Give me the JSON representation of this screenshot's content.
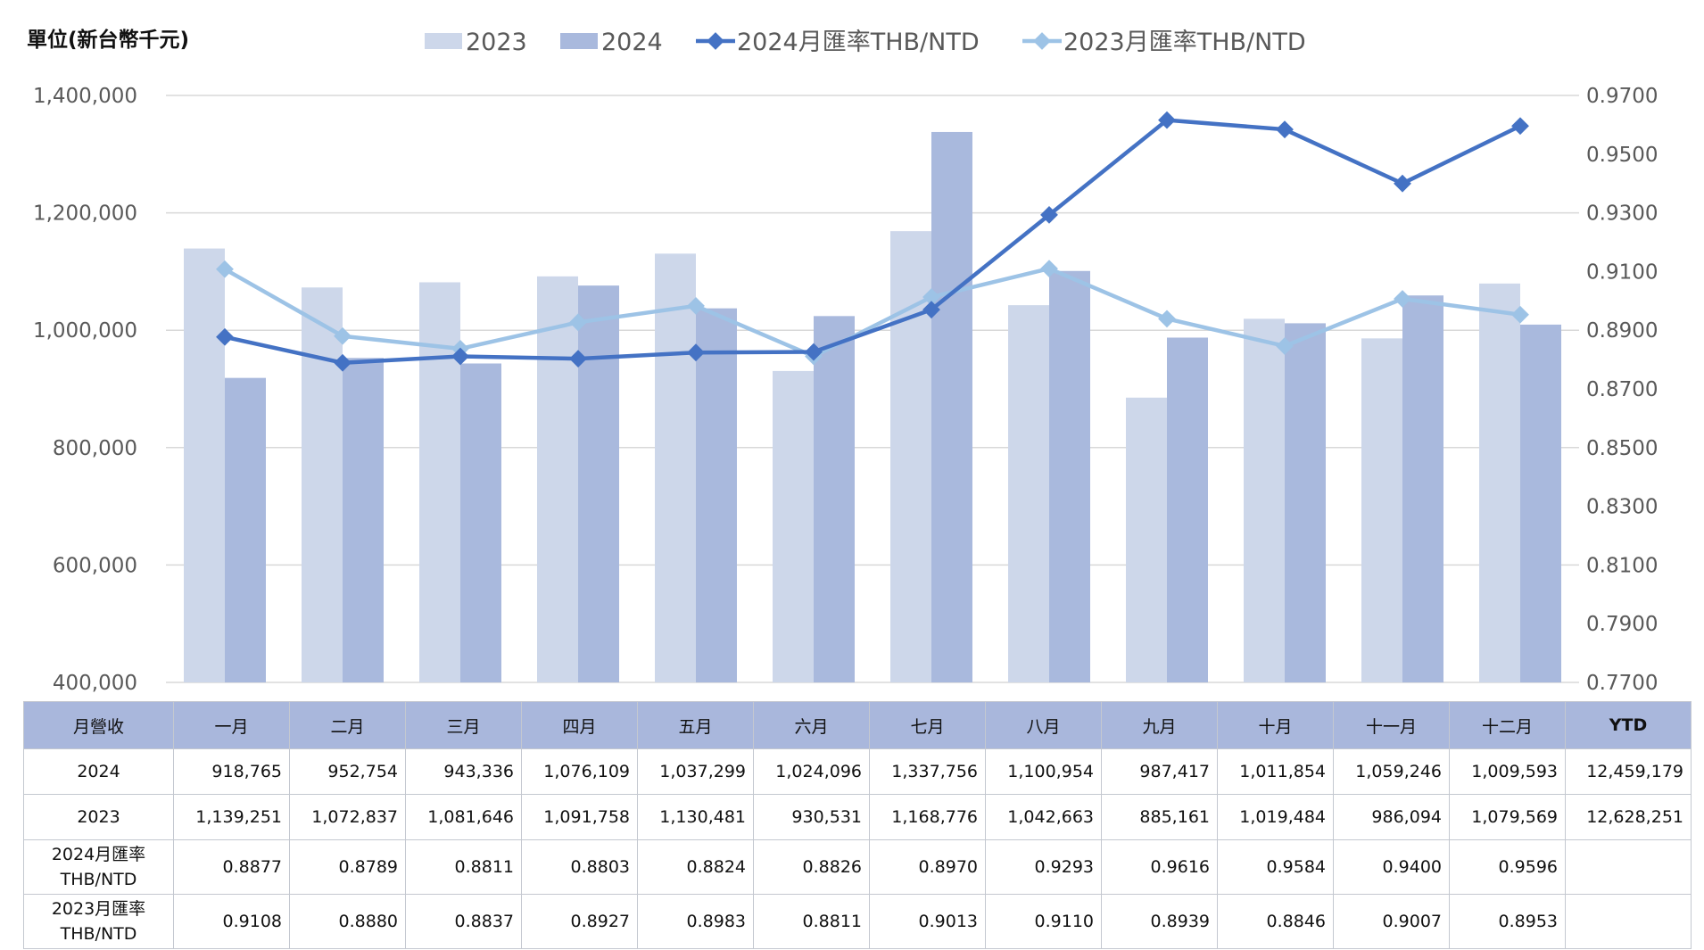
{
  "chart_data": {
    "type": "bar",
    "unit_label": "單位(新台幣千元)",
    "categories": [
      "一月",
      "二月",
      "三月",
      "四月",
      "五月",
      "六月",
      "七月",
      "八月",
      "九月",
      "十月",
      "十一月",
      "十二月"
    ],
    "series": [
      {
        "name": "2023",
        "type": "bar",
        "axis": "left",
        "color": "#cdd7ea",
        "values": [
          1139251,
          1072837,
          1081646,
          1091758,
          1130481,
          930531,
          1168776,
          1042663,
          885161,
          1019484,
          986094,
          1079569
        ]
      },
      {
        "name": "2024",
        "type": "bar",
        "axis": "left",
        "color": "#a9b9dd",
        "values": [
          918765,
          952754,
          943336,
          1076109,
          1037299,
          1024096,
          1337756,
          1100954,
          987417,
          1011854,
          1059246,
          1009593
        ]
      },
      {
        "name": "2024月匯率THB/NTD",
        "type": "line",
        "axis": "right",
        "color": "#4472c4",
        "values": [
          0.8877,
          0.8789,
          0.8811,
          0.8803,
          0.8824,
          0.8826,
          0.897,
          0.9293,
          0.9616,
          0.9584,
          0.94,
          0.9596
        ]
      },
      {
        "name": "2023月匯率THB/NTD",
        "type": "line",
        "axis": "right",
        "color": "#9dc3e6",
        "values": [
          0.9108,
          0.888,
          0.8837,
          0.8927,
          0.8983,
          0.8811,
          0.9013,
          0.911,
          0.8939,
          0.8846,
          0.9007,
          0.8953
        ]
      }
    ],
    "y_left": {
      "min": 400000,
      "max": 1400000,
      "ticks": [
        "400,000",
        "600,000",
        "800,000",
        "1,000,000",
        "1,200,000",
        "1,400,000"
      ]
    },
    "y_right": {
      "min": 0.77,
      "max": 0.97,
      "ticks": [
        "0.7700",
        "0.7900",
        "0.8100",
        "0.8300",
        "0.8500",
        "0.8700",
        "0.8900",
        "0.9100",
        "0.9300",
        "0.9500",
        "0.9700"
      ]
    },
    "grid": true,
    "legend_position": "top-center"
  },
  "table": {
    "header": [
      "月營收",
      "一月",
      "二月",
      "三月",
      "四月",
      "五月",
      "六月",
      "七月",
      "八月",
      "九月",
      "十月",
      "十一月",
      "十二月",
      "YTD"
    ],
    "rows": [
      {
        "label": [
          "2024"
        ],
        "cls": "",
        "cells": [
          "918,765",
          "952,754",
          "943,336",
          "1,076,109",
          "1,037,299",
          "1,024,096",
          "1,337,756",
          "1,100,954",
          "987,417",
          "1,011,854",
          "1,059,246",
          "1,009,593",
          "12,459,179"
        ]
      },
      {
        "label": [
          "2023"
        ],
        "cls": "",
        "cells": [
          "1,139,251",
          "1,072,837",
          "1,081,646",
          "1,091,758",
          "1,130,481",
          "930,531",
          "1,168,776",
          "1,042,663",
          "885,161",
          "1,019,484",
          "986,094",
          "1,079,569",
          "12,628,251"
        ]
      },
      {
        "label": [
          "2024月匯率",
          "THB/NTD"
        ],
        "cls": "rate",
        "cells": [
          "0.8877",
          "0.8789",
          "0.8811",
          "0.8803",
          "0.8824",
          "0.8826",
          "0.8970",
          "0.9293",
          "0.9616",
          "0.9584",
          "0.9400",
          "0.9596",
          ""
        ]
      },
      {
        "label": [
          "2023月匯率",
          "THB/NTD"
        ],
        "cls": "rate",
        "cells": [
          "0.9108",
          "0.8880",
          "0.8837",
          "0.8927",
          "0.8983",
          "0.8811",
          "0.9013",
          "0.9110",
          "0.8939",
          "0.8846",
          "0.9007",
          "0.8953",
          ""
        ]
      }
    ]
  }
}
